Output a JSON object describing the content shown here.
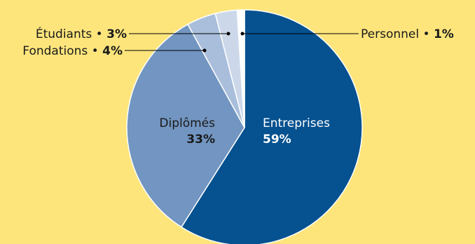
{
  "colors": {
    "background": "#fde57c",
    "entreprises": "#06518f",
    "diplomes": "#7295c1",
    "fondations": "#a9bedb",
    "etudiants": "#ccd8ea",
    "personnel": "#ffffff",
    "leader": "#000000",
    "slice_border": "#ffffff",
    "inner_text_light": "#ffffff",
    "inner_text_dark": "#1a1a1a"
  },
  "chart_data": {
    "type": "pie",
    "unit": "%",
    "start_angle_deg": 0,
    "direction": "clockwise",
    "series": [
      {
        "key": "entreprises",
        "label": "Entreprises",
        "value": 59,
        "value_text": "59%"
      },
      {
        "key": "diplomes",
        "label": "Diplômés",
        "value": 33,
        "value_text": "33%"
      },
      {
        "key": "fondations",
        "label": "Fondations",
        "value": 4,
        "value_text": "4%"
      },
      {
        "key": "etudiants",
        "label": "Étudiants",
        "value": 3,
        "value_text": "3%"
      },
      {
        "key": "personnel",
        "label": "Personnel",
        "value": 1,
        "value_text": "1%"
      }
    ],
    "legend": "none"
  }
}
